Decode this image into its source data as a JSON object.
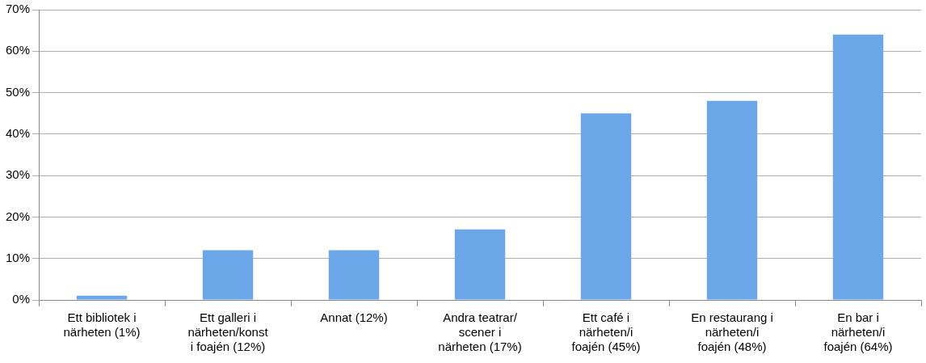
{
  "chart_data": {
    "type": "bar",
    "categories": [
      "Ett bibliotek i\nnärheten (1%)",
      "Ett galleri i\nnärheten/konst\ni foajén (12%)",
      "Annat (12%)",
      "Andra teatrar/\nscener i\nnärheten (17%)",
      "Ett café i\nnärheten/i\nfoajén (45%)",
      "En restaurang i\nnärheten/i\nfoajén (48%)",
      "En bar i\nnärheten/i\nfoajén (64%)"
    ],
    "values": [
      1,
      12,
      12,
      17,
      45,
      48,
      64
    ],
    "color": "#6aa6e8",
    "ylim": [
      0,
      70
    ],
    "yticks": [
      {
        "value": 0,
        "label": "0%"
      },
      {
        "value": 10,
        "label": "10%"
      },
      {
        "value": 20,
        "label": "20%"
      },
      {
        "value": 30,
        "label": "30%"
      },
      {
        "value": 40,
        "label": "40%"
      },
      {
        "value": 50,
        "label": "50%"
      },
      {
        "value": 60,
        "label": "60%"
      },
      {
        "value": 70,
        "label": "70%"
      }
    ],
    "grid": "y",
    "legend": false
  }
}
